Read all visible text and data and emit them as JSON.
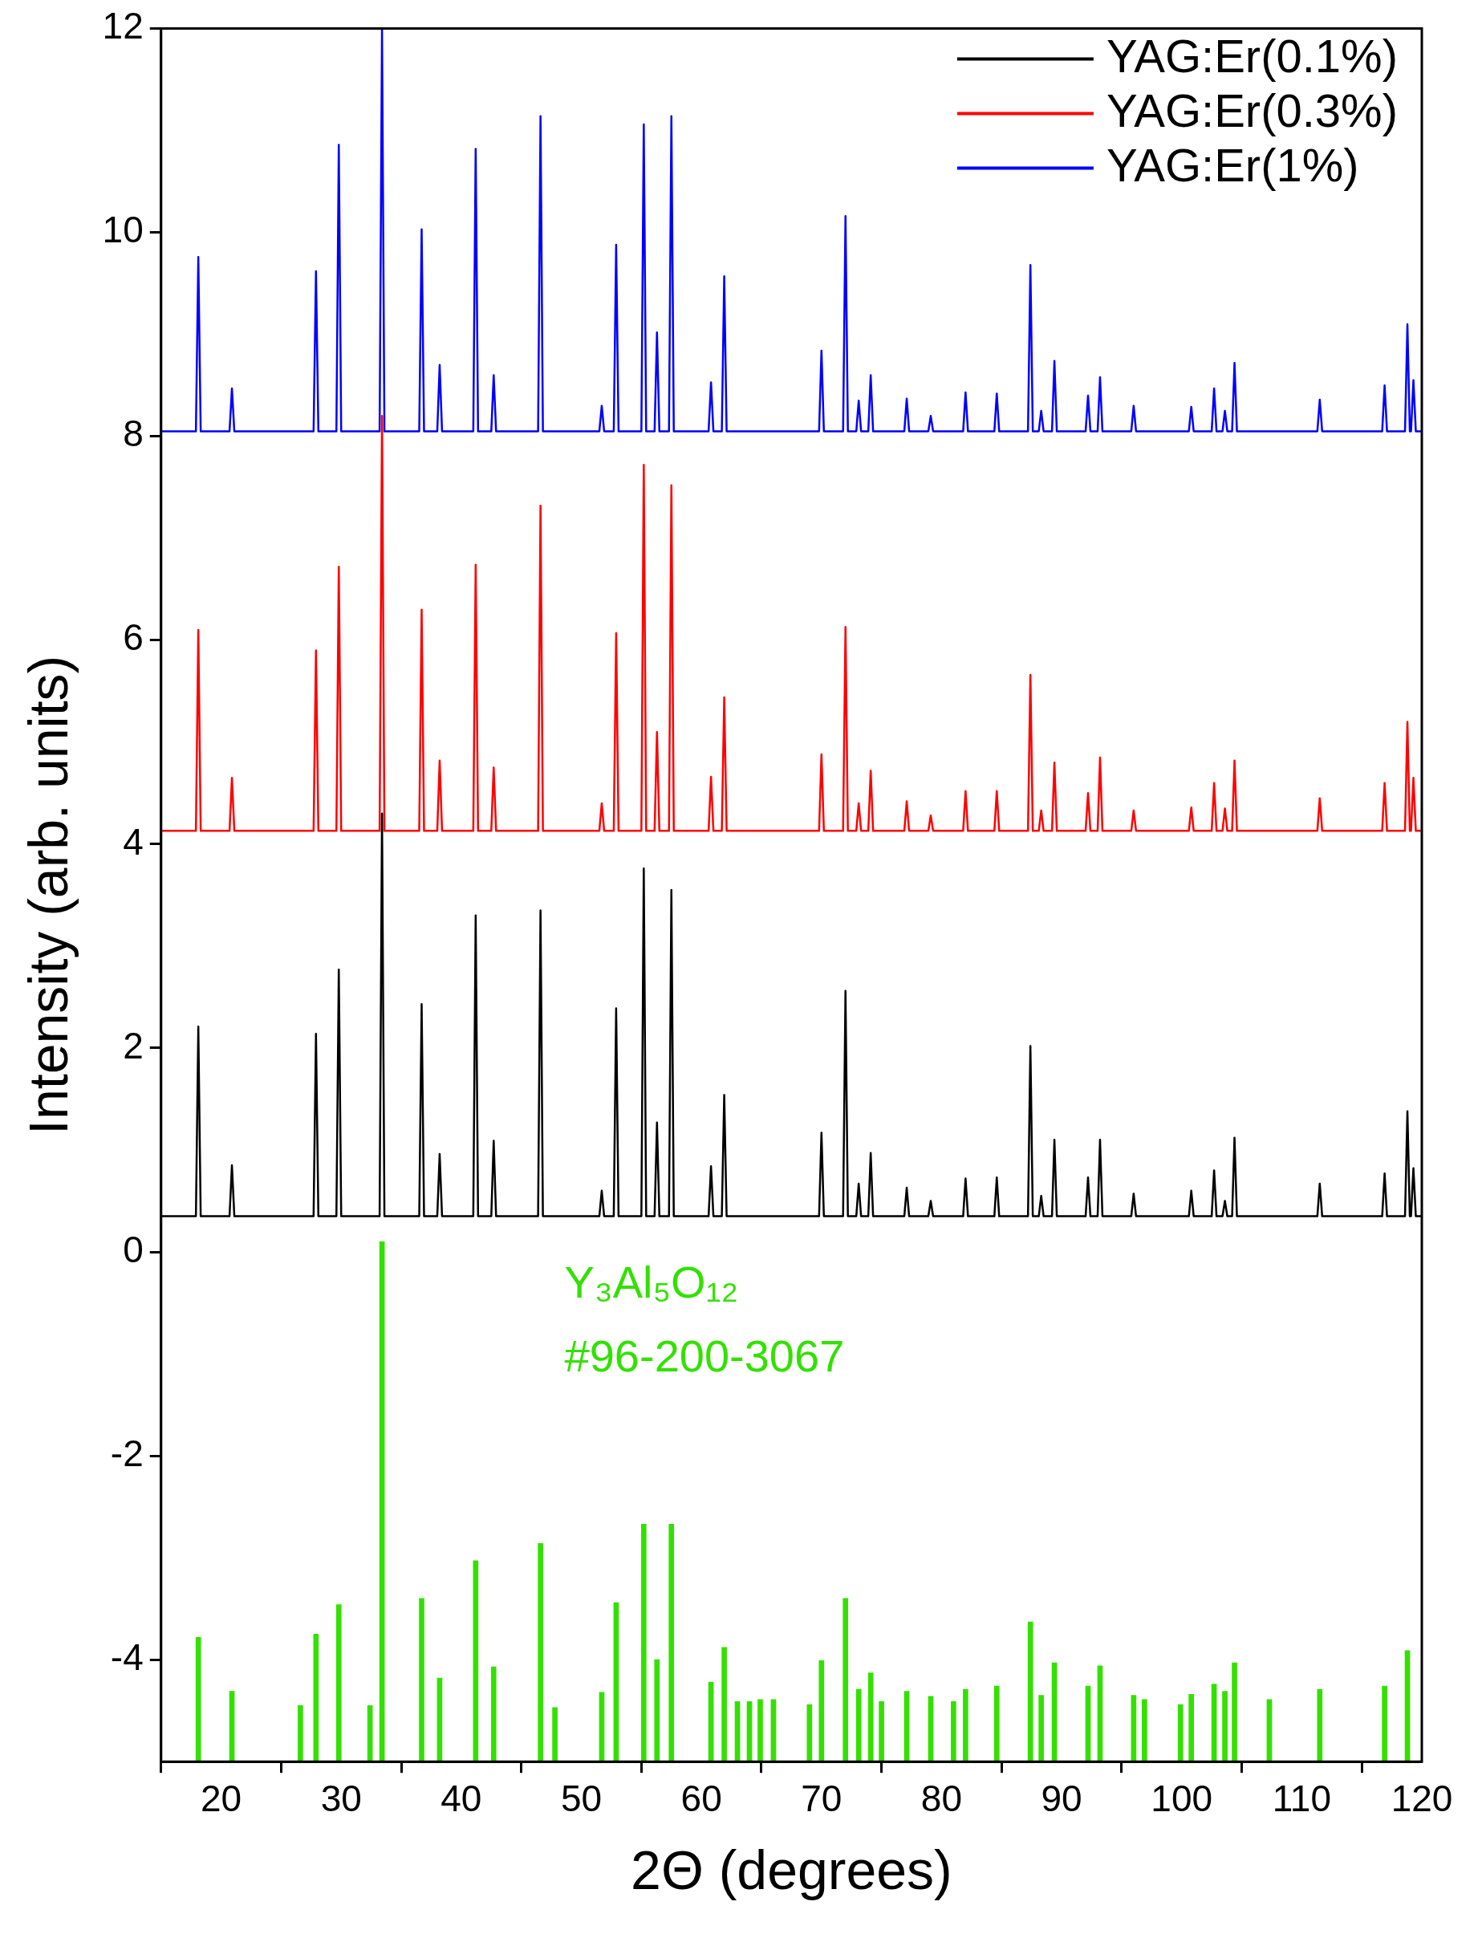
{
  "chart_data": {
    "type": "line",
    "xlabel": "2Θ (degrees)",
    "ylabel": "Intensity (arb. units)",
    "xlim": [
      15,
      120
    ],
    "ylim": [
      -5,
      12
    ],
    "xticks": [
      20,
      30,
      40,
      50,
      60,
      70,
      80,
      90,
      100,
      110,
      120
    ],
    "yticks": [
      -4,
      -2,
      0,
      2,
      4,
      6,
      8,
      10,
      12
    ],
    "grid": false,
    "legend": "top right",
    "marker": "none",
    "line_style": "solid",
    "annotations": [
      "Y₃Al₅O₁₂",
      "#96-200-3067"
    ],
    "x": [
      15,
      17.9,
      18.1,
      18.3,
      20.7,
      20.9,
      21.1,
      27.7,
      27.9,
      28.1,
      29.6,
      29.8,
      30,
      33.2,
      33.4,
      33.6,
      36.5,
      36.7,
      36.9,
      38,
      38.2,
      38.4,
      41,
      41.2,
      41.4,
      42.5,
      42.7,
      42.9,
      46.4,
      46.6,
      46.8,
      51.5,
      51.7,
      51.9,
      52.7,
      52.9,
      53.1,
      55,
      55.2,
      55.4,
      56.1,
      56.3,
      56.5,
      57.3,
      57.5,
      57.7,
      60.6,
      60.8,
      61,
      61.7,
      61.9,
      62.1,
      69.8,
      70,
      70.2,
      71.8,
      72,
      72.2,
      72.9,
      73.1,
      73.3,
      73.9,
      74.1,
      74.3,
      76.9,
      77.1,
      77.3,
      78.9,
      79.1,
      79.3,
      81.8,
      82,
      82.2,
      84.4,
      84.6,
      84.8,
      87.2,
      87.4,
      87.6,
      88.1,
      88.3,
      88.5,
      89.2,
      89.4,
      89.6,
      92,
      92.2,
      92.4,
      93,
      93.2,
      93.4,
      95.8,
      96,
      96.2,
      100.6,
      100.8,
      101,
      102.5,
      102.7,
      102.9,
      103.4,
      103.6,
      103.8,
      104.2,
      104.4,
      104.6,
      111.3,
      111.5,
      111.7,
      116.7,
      116.9,
      117.1,
      118.6,
      118.8,
      119,
      119.1,
      119.3,
      119.5,
      120
    ],
    "series": [
      {
        "name": "YAG:Er(0.1%)",
        "color": "#000000",
        "values": [
          0.35,
          0.35,
          2.21,
          0.35,
          0.35,
          0.85,
          0.35,
          0.35,
          2.14,
          0.35,
          0.35,
          2.77,
          0.35,
          0.35,
          4.3,
          0.35,
          0.35,
          2.43,
          0.35,
          0.35,
          0.96,
          0.35,
          0.35,
          3.3,
          0.35,
          0.35,
          1.09,
          0.35,
          0.35,
          3.35,
          0.35,
          0.35,
          0.6,
          0.35,
          0.35,
          2.39,
          0.35,
          0.35,
          3.76,
          0.35,
          0.35,
          1.27,
          0.35,
          0.35,
          3.55,
          0.35,
          0.35,
          0.84,
          0.35,
          0.35,
          1.54,
          0.35,
          0.35,
          1.17,
          0.35,
          0.35,
          2.56,
          0.35,
          0.35,
          0.67,
          0.35,
          0.35,
          0.97,
          0.35,
          0.35,
          0.63,
          0.35,
          0.35,
          0.5,
          0.35,
          0.35,
          0.72,
          0.35,
          0.35,
          0.73,
          0.35,
          0.35,
          2.02,
          0.35,
          0.35,
          0.55,
          0.35,
          0.35,
          1.1,
          0.35,
          0.35,
          0.73,
          0.35,
          0.35,
          1.1,
          0.35,
          0.35,
          0.57,
          0.35,
          0.35,
          0.6,
          0.35,
          0.35,
          0.8,
          0.35,
          0.35,
          0.5,
          0.35,
          0.35,
          1.12,
          0.35,
          0.35,
          0.67,
          0.35,
          0.35,
          0.77,
          0.35,
          0.35,
          1.38,
          0.35,
          0.35,
          0.82,
          0.35,
          0.35
        ]
      },
      {
        "name": "YAG:Er(0.3%)",
        "color": "#ff0000",
        "values": [
          4.13,
          4.13,
          6.1,
          4.13,
          4.13,
          4.65,
          4.13,
          4.13,
          5.9,
          4.13,
          4.13,
          6.72,
          4.13,
          4.13,
          8.2,
          4.13,
          4.13,
          6.3,
          4.13,
          4.13,
          4.82,
          4.13,
          4.13,
          6.74,
          4.13,
          4.13,
          4.75,
          4.13,
          4.13,
          7.32,
          4.13,
          4.13,
          4.4,
          4.13,
          4.13,
          6.07,
          4.13,
          4.13,
          7.72,
          4.13,
          4.13,
          5.1,
          4.13,
          4.13,
          7.52,
          4.13,
          4.13,
          4.66,
          4.13,
          4.13,
          5.44,
          4.13,
          4.13,
          4.88,
          4.13,
          4.13,
          6.13,
          4.13,
          4.13,
          4.4,
          4.13,
          4.13,
          4.72,
          4.13,
          4.13,
          4.42,
          4.13,
          4.13,
          4.28,
          4.13,
          4.13,
          4.52,
          4.13,
          4.13,
          4.52,
          4.13,
          4.13,
          5.66,
          4.13,
          4.13,
          4.33,
          4.13,
          4.13,
          4.8,
          4.13,
          4.13,
          4.5,
          4.13,
          4.13,
          4.85,
          4.13,
          4.13,
          4.33,
          4.13,
          4.13,
          4.36,
          4.13,
          4.13,
          4.6,
          4.13,
          4.13,
          4.35,
          4.13,
          4.13,
          4.82,
          4.13,
          4.13,
          4.45,
          4.13,
          4.13,
          4.6,
          4.13,
          4.13,
          5.2,
          4.13,
          4.13,
          4.65,
          4.13,
          4.13
        ]
      },
      {
        "name": "YAG:Er(1%)",
        "color": "#0000ff",
        "values": [
          8.05,
          8.05,
          9.76,
          8.05,
          8.05,
          8.47,
          8.05,
          8.05,
          9.62,
          8.05,
          8.05,
          10.86,
          8.05,
          8.05,
          12,
          8.05,
          8.05,
          10.03,
          8.05,
          8.05,
          8.7,
          8.05,
          8.05,
          10.82,
          8.05,
          8.05,
          8.6,
          8.05,
          8.05,
          11.14,
          8.05,
          8.05,
          8.3,
          8.05,
          8.05,
          9.88,
          8.05,
          8.05,
          11.06,
          8.05,
          8.05,
          9.02,
          8.05,
          8.05,
          11.14,
          8.05,
          8.05,
          8.53,
          8.05,
          8.05,
          9.57,
          8.05,
          8.05,
          8.84,
          8.05,
          8.05,
          10.16,
          8.05,
          8.05,
          8.35,
          8.05,
          8.05,
          8.6,
          8.05,
          8.05,
          8.37,
          8.05,
          8.05,
          8.2,
          8.05,
          8.05,
          8.43,
          8.05,
          8.05,
          8.42,
          8.05,
          8.05,
          9.68,
          8.05,
          8.05,
          8.25,
          8.05,
          8.05,
          8.74,
          8.05,
          8.05,
          8.4,
          8.05,
          8.05,
          8.58,
          8.05,
          8.05,
          8.3,
          8.05,
          8.05,
          8.29,
          8.05,
          8.05,
          8.47,
          8.05,
          8.05,
          8.25,
          8.05,
          8.05,
          8.72,
          8.05,
          8.05,
          8.36,
          8.05,
          8.05,
          8.5,
          8.05,
          8.05,
          9.1,
          8.05,
          8.05,
          8.55,
          8.05,
          8.05
        ]
      },
      {
        "type": "bar",
        "color": "#33e000",
        "x": [
          18.1,
          20.9,
          26.6,
          27.9,
          29.8,
          32.4,
          33.4,
          36.7,
          38.2,
          41.2,
          42.7,
          46.6,
          47.8,
          51.7,
          52.9,
          55.2,
          56.3,
          57.5,
          60.8,
          61.9,
          63.0,
          64.0,
          64.9,
          66.0,
          69.0,
          70.0,
          72.0,
          73.1,
          74.1,
          75.0,
          77.1,
          79.1,
          81.0,
          82.0,
          84.6,
          87.4,
          88.3,
          89.4,
          92.2,
          93.2,
          96.0,
          96.9,
          99.9,
          100.8,
          102.7,
          103.6,
          104.4,
          107.3,
          111.5,
          116.9,
          118.8
        ],
        "base": [
          -5,
          -5,
          -5,
          -5,
          -5,
          -5,
          -5,
          -5,
          -5,
          -5,
          -5,
          -5,
          -5,
          -5,
          -5,
          -5,
          -5,
          -5,
          -5,
          -5,
          -5,
          -5,
          -5,
          -5,
          -5,
          -5,
          -5,
          -5,
          -5,
          -5,
          -5,
          -5,
          -5,
          -5,
          -5,
          -5,
          -5,
          -5,
          -5,
          -5,
          -5,
          -5,
          -5,
          -5,
          -5,
          -5,
          -5,
          -5,
          -5,
          -5,
          -5
        ],
        "values": [
          1.22,
          0.69,
          0.55,
          1.25,
          1.54,
          0.55,
          5.1,
          1.6,
          0.82,
          1.97,
          0.93,
          2.14,
          0.53,
          0.68,
          1.56,
          2.33,
          1.0,
          2.33,
          0.78,
          1.12,
          0.59,
          0.59,
          0.61,
          0.61,
          0.56,
          0.99,
          1.6,
          0.71,
          0.87,
          0.59,
          0.69,
          0.64,
          0.59,
          0.71,
          0.74,
          1.37,
          0.65,
          0.97,
          0.74,
          0.94,
          0.65,
          0.61,
          0.56,
          0.66,
          0.76,
          0.69,
          0.97,
          0.61,
          0.71,
          0.74,
          1.09
        ]
      }
    ]
  }
}
